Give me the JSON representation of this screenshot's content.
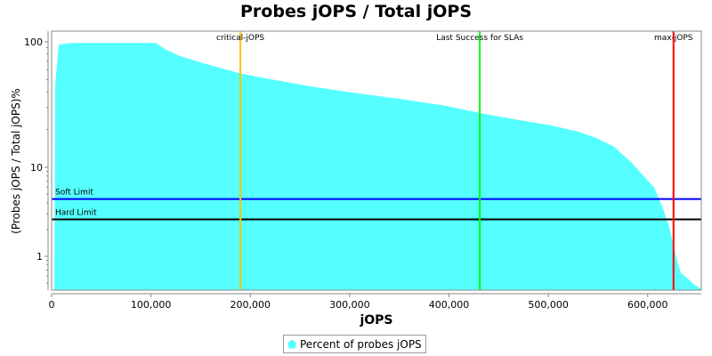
{
  "chart_data": {
    "type": "area",
    "title": "Probes jOPS / Total jOPS",
    "xlabel": "jOPS",
    "ylabel": "(Probes jOPS / Total jOPS)%",
    "yscale": "log",
    "xlim": [
      0,
      654000
    ],
    "ylim": [
      0.42,
      122
    ],
    "xticks": [
      0,
      100000,
      200000,
      300000,
      400000,
      500000,
      600000
    ],
    "xtick_labels": [
      "0",
      "100,000",
      "200,000",
      "300,000",
      "400,000",
      "500,000",
      "600,000"
    ],
    "yticks": [
      100,
      10,
      1
    ],
    "ytick_labels": [
      "100",
      "10",
      "1"
    ],
    "series": [
      {
        "name": "Percent of probes jOPS",
        "color": "#55ffff",
        "x": [
          2700,
          3600,
          7200,
          19700,
          104800,
          113800,
          127200,
          154100,
          190000,
          216800,
          261600,
          306500,
          351300,
          396100,
          431900,
          467700,
          503600,
          530500,
          548400,
          566300,
          584200,
          606600,
          615600,
          621900,
          629000,
          633500,
          639800,
          646900,
          654100
        ],
        "y": [
          0.42,
          46,
          95,
          98,
          98,
          88,
          78,
          67,
          56,
          51,
          44,
          39,
          35,
          31,
          27,
          24,
          21.5,
          19.2,
          17.1,
          14.6,
          10.8,
          5.9,
          3.4,
          2.1,
          0.95,
          0.65,
          0.57,
          0.48,
          0.43
        ]
      }
    ],
    "vlines": [
      {
        "label": "critical-jOPS",
        "x": 190000,
        "color": "#ffc800"
      },
      {
        "label": "Last Success for SLAs",
        "x": 431000,
        "color": "#00ff00"
      },
      {
        "label": "max-jOPS",
        "x": 626000,
        "color": "#ff0000"
      }
    ],
    "hlines": [
      {
        "label": "Soft Limit",
        "y": 4.4,
        "color": "#0000ff"
      },
      {
        "label": "Hard Limit",
        "y": 2.6,
        "color": "#000000"
      }
    ],
    "legend": "bottom"
  }
}
